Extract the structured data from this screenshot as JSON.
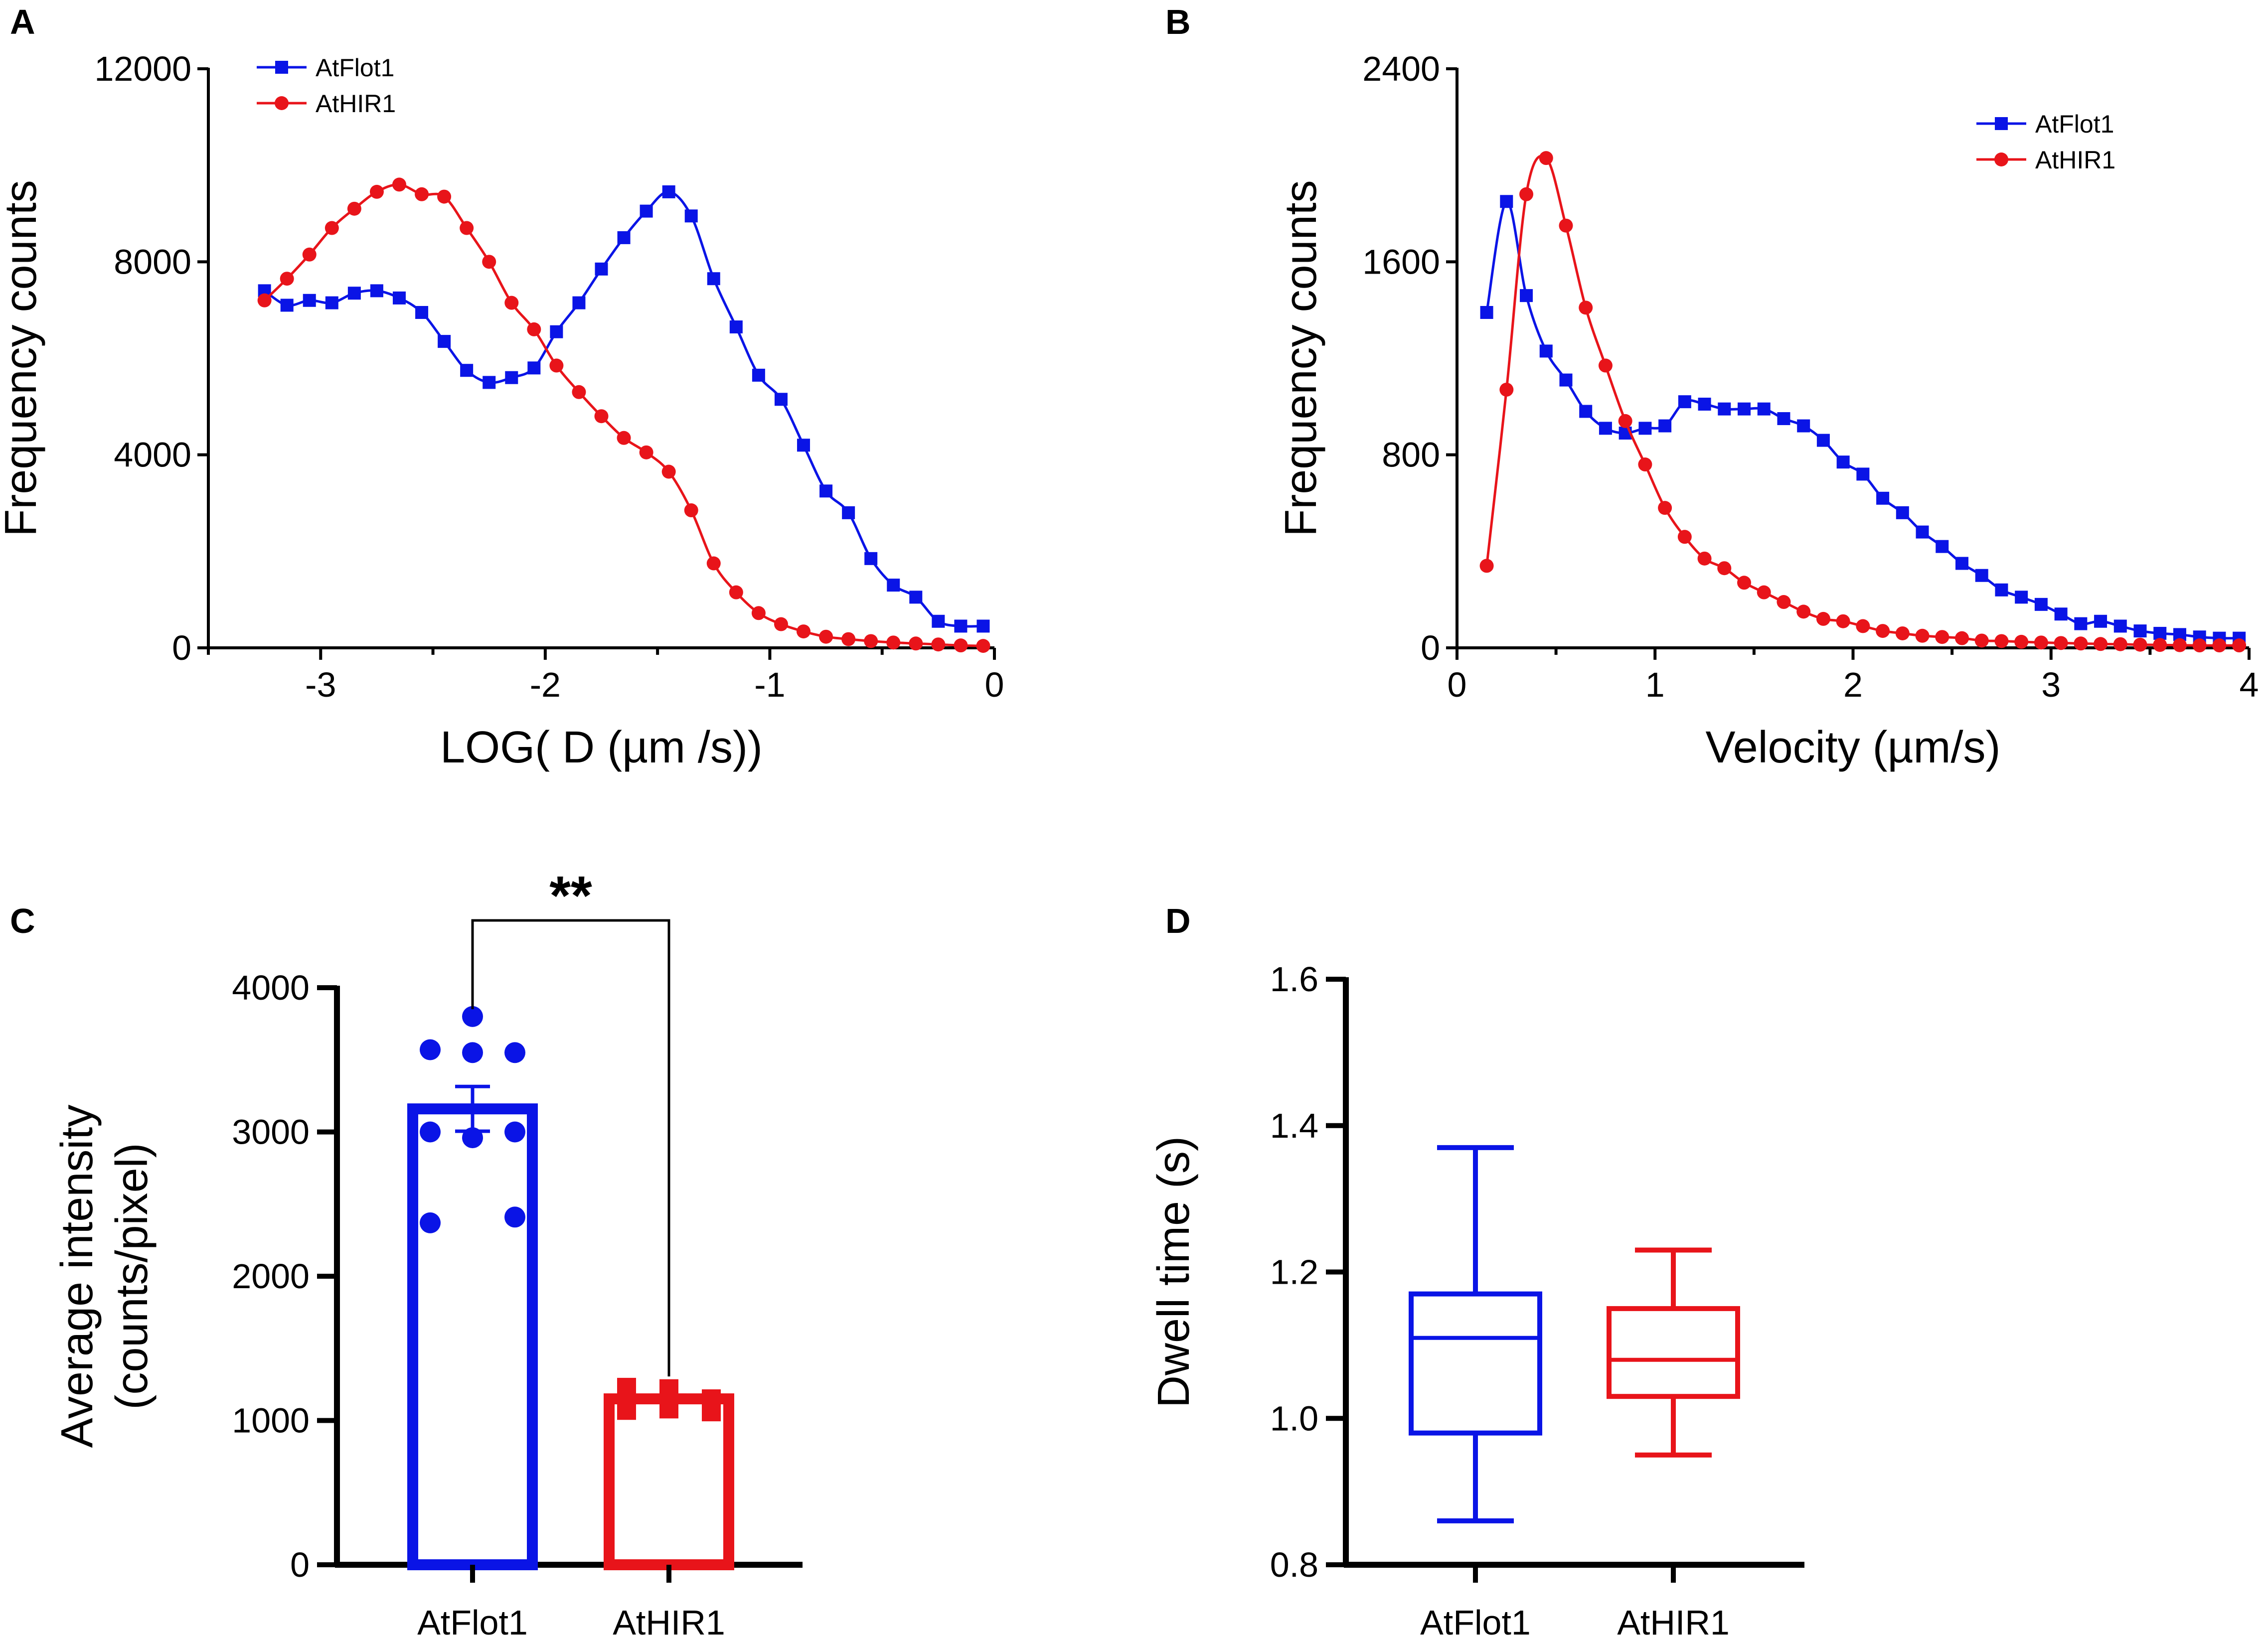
{
  "figure_title": "",
  "chart_data": [
    {
      "panel": "A",
      "type": "line",
      "xlabel": "LOG( D (µm /s))",
      "ylabel": "Frequency counts",
      "xlim": [
        -3.5,
        0
      ],
      "ylim": [
        0,
        12000
      ],
      "xticks": [
        -3,
        -2,
        -1,
        0
      ],
      "xtick_labels": [
        "-3",
        "-2",
        "-1",
        "0"
      ],
      "yticks": [
        0,
        4000,
        8000,
        12000
      ],
      "ytick_labels": [
        "0",
        "4000",
        "8000",
        "12000"
      ],
      "legend_position": "top-left",
      "series": [
        {
          "name": "AtFlot1",
          "color": "#0a14e6",
          "marker": "square",
          "x": [
            -3.25,
            -3.15,
            -3.05,
            -2.95,
            -2.85,
            -2.75,
            -2.65,
            -2.55,
            -2.45,
            -2.35,
            -2.25,
            -2.15,
            -2.05,
            -1.95,
            -1.85,
            -1.75,
            -1.65,
            -1.55,
            -1.45,
            -1.35,
            -1.25,
            -1.15,
            -1.05,
            -0.95,
            -0.85,
            -0.75,
            -0.65,
            -0.55,
            -0.45,
            -0.35,
            -0.25,
            -0.15,
            -0.05
          ],
          "y": [
            7400,
            7100,
            7200,
            7150,
            7350,
            7400,
            7250,
            6950,
            6350,
            5750,
            5500,
            5600,
            5800,
            6550,
            7150,
            7850,
            8500,
            9050,
            9450,
            8950,
            7650,
            6650,
            5650,
            5150,
            4200,
            3250,
            2800,
            1850,
            1300,
            1050,
            550,
            450,
            450
          ]
        },
        {
          "name": "AtHIR1",
          "color": "#e8141a",
          "marker": "circle",
          "x": [
            -3.25,
            -3.15,
            -3.05,
            -2.95,
            -2.85,
            -2.75,
            -2.65,
            -2.55,
            -2.45,
            -2.35,
            -2.25,
            -2.15,
            -2.05,
            -1.95,
            -1.85,
            -1.75,
            -1.65,
            -1.55,
            -1.45,
            -1.35,
            -1.25,
            -1.15,
            -1.05,
            -0.95,
            -0.85,
            -0.75,
            -0.65,
            -0.55,
            -0.45,
            -0.35,
            -0.25,
            -0.15,
            -0.05
          ],
          "y": [
            7200,
            7650,
            8150,
            8700,
            9100,
            9450,
            9600,
            9400,
            9350,
            8700,
            8000,
            7150,
            6600,
            5850,
            5300,
            4800,
            4350,
            4050,
            3650,
            2850,
            1750,
            1150,
            720,
            490,
            340,
            230,
            180,
            140,
            110,
            90,
            70,
            50,
            40
          ]
        }
      ]
    },
    {
      "panel": "B",
      "type": "line",
      "xlabel": "Velocity (µm/s)",
      "ylabel": "Frequency counts",
      "xlim": [
        0,
        4
      ],
      "ylim": [
        0,
        2400
      ],
      "xticks": [
        0,
        1,
        2,
        3,
        4
      ],
      "xtick_labels": [
        "0",
        "1",
        "2",
        "3",
        "4"
      ],
      "yticks": [
        0,
        800,
        1600,
        2400
      ],
      "ytick_labels": [
        "0",
        "800",
        "1600",
        "2400"
      ],
      "legend_position": "top-right",
      "series": [
        {
          "name": "AtFlot1",
          "color": "#0a14e6",
          "marker": "square",
          "x": [
            0.15,
            0.25,
            0.35,
            0.45,
            0.55,
            0.65,
            0.75,
            0.85,
            0.95,
            1.05,
            1.15,
            1.25,
            1.35,
            1.45,
            1.55,
            1.65,
            1.75,
            1.85,
            1.95,
            2.05,
            2.15,
            2.25,
            2.35,
            2.45,
            2.55,
            2.65,
            2.75,
            2.85,
            2.95,
            3.05,
            3.15,
            3.25,
            3.35,
            3.45,
            3.55,
            3.65,
            3.75,
            3.85,
            3.95
          ],
          "y": [
            1390,
            1850,
            1460,
            1230,
            1110,
            980,
            910,
            890,
            910,
            920,
            1020,
            1010,
            990,
            990,
            990,
            950,
            920,
            860,
            770,
            720,
            620,
            560,
            480,
            420,
            350,
            300,
            240,
            210,
            180,
            140,
            100,
            110,
            90,
            70,
            60,
            55,
            45,
            40,
            40
          ]
        },
        {
          "name": "AtHIR1",
          "color": "#e8141a",
          "marker": "circle",
          "x": [
            0.15,
            0.25,
            0.35,
            0.45,
            0.55,
            0.65,
            0.75,
            0.85,
            0.95,
            1.05,
            1.15,
            1.25,
            1.35,
            1.45,
            1.55,
            1.65,
            1.75,
            1.85,
            1.95,
            2.05,
            2.15,
            2.25,
            2.35,
            2.45,
            2.55,
            2.65,
            2.75,
            2.85,
            2.95,
            3.05,
            3.15,
            3.25,
            3.35,
            3.45,
            3.55,
            3.65,
            3.75,
            3.85,
            3.95
          ],
          "y": [
            340,
            1070,
            1880,
            2030,
            1750,
            1410,
            1170,
            940,
            760,
            580,
            460,
            370,
            330,
            270,
            230,
            190,
            150,
            120,
            110,
            90,
            70,
            60,
            50,
            45,
            40,
            30,
            28,
            25,
            22,
            20,
            18,
            16,
            15,
            13,
            12,
            11,
            10,
            10,
            10
          ]
        }
      ]
    },
    {
      "panel": "C",
      "type": "bar",
      "xlabel": "",
      "ylabel": "Average intensity",
      "ylabel2": "(counts/pixel)",
      "categories": [
        "AtFlot1",
        "AtHIR1"
      ],
      "values": [
        3160,
        1150
      ],
      "errors": [
        155,
        25
      ],
      "colors": [
        "#0a14e6",
        "#e8141a"
      ],
      "ylim": [
        0,
        4000
      ],
      "yticks": [
        0,
        1000,
        2000,
        3000,
        4000
      ],
      "ytick_labels": [
        "0",
        "1000",
        "2000",
        "3000",
        "4000"
      ],
      "points": [
        [
          3800,
          3570,
          3550,
          3550,
          3000,
          3000,
          2960,
          2370,
          2410
        ],
        [
          1220,
          1230,
          1220,
          1150,
          1150,
          1150,
          1080,
          1070,
          1060
        ]
      ],
      "significance": "**"
    },
    {
      "panel": "D",
      "type": "box",
      "xlabel": "",
      "ylabel": "Dwell time (s)",
      "categories": [
        "AtFlot1",
        "AtHIR1"
      ],
      "colors": [
        "#0a14e6",
        "#e8141a"
      ],
      "ylim": [
        0.8,
        1.6
      ],
      "yticks": [
        0.8,
        1.0,
        1.2,
        1.4,
        1.6
      ],
      "ytick_labels": [
        "0.8",
        "1.0",
        "1.2",
        "1.4",
        "1.6"
      ],
      "boxes": [
        {
          "min": 0.86,
          "q1": 0.98,
          "median": 1.11,
          "q3": 1.17,
          "max": 1.37
        },
        {
          "min": 0.95,
          "q1": 1.03,
          "median": 1.08,
          "q3": 1.15,
          "max": 1.23
        }
      ]
    }
  ]
}
